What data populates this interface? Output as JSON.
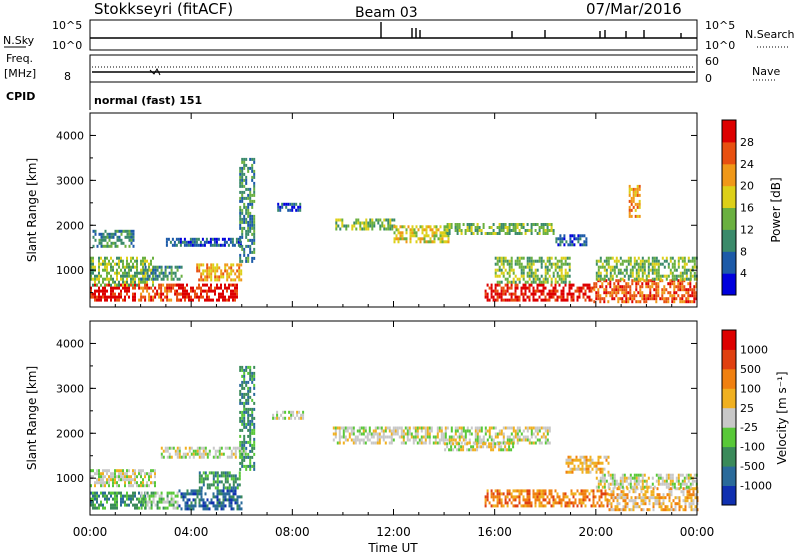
{
  "header": {
    "station": "Stokkseyri (fitACF)",
    "beam": "Beam 03",
    "date": "07/Mar/2016"
  },
  "top_panel": {
    "left_label": "N.Sky",
    "left_ticks": [
      "10^5",
      "10^0"
    ],
    "right_ticks": [
      "10^5",
      "10^0"
    ],
    "right_label": "N.Search"
  },
  "freq_panel": {
    "left_label_line1": "Freq.",
    "left_label_line2": "[MHz]",
    "left_ticks": [
      "8"
    ],
    "right_ticks": [
      "60",
      "0"
    ],
    "right_label": "Nave"
  },
  "cpid": {
    "label": "CPID",
    "mode": "normal (fast) 151"
  },
  "chart_data": {
    "type": "heatmap",
    "x_axis": {
      "label": "Time UT",
      "ticks": [
        "00:00",
        "04:00",
        "08:00",
        "12:00",
        "16:00",
        "20:00",
        "00:00"
      ],
      "range_hours": [
        0,
        24
      ]
    },
    "panels": [
      {
        "name": "power",
        "ylabel": "Slant Range [km]",
        "ylim": [
          180,
          4500
        ],
        "yticks": [
          "1000",
          "2000",
          "3000",
          "4000"
        ],
        "colorbar": {
          "label": "Power [dB]",
          "ticks": [
            "4",
            "8",
            "12",
            "16",
            "20",
            "24",
            "28"
          ],
          "colors": [
            "#0000dd",
            "#1c5aa8",
            "#3a8a6a",
            "#6ab040",
            "#ddd018",
            "#f09818",
            "#e85010",
            "#dd0000"
          ]
        },
        "regions": [
          {
            "t": [
              0.0,
              1.8
            ],
            "r": [
              300,
              700
            ],
            "level": 7
          },
          {
            "t": [
              0.0,
              2.5
            ],
            "r": [
              650,
              1300
            ],
            "level": 3
          },
          {
            "t": [
              0.1,
              1.7
            ],
            "r": [
              1500,
              1900
            ],
            "level": 2
          },
          {
            "t": [
              1.9,
              3.6
            ],
            "r": [
              320,
              700
            ],
            "level": 6
          },
          {
            "t": [
              3.4,
              5.8
            ],
            "r": [
              330,
              700
            ],
            "level": 7
          },
          {
            "t": [
              4.2,
              6.0
            ],
            "r": [
              800,
              1150
            ],
            "level": 5
          },
          {
            "t": [
              2.0,
              3.6
            ],
            "r": [
              800,
              1100
            ],
            "level": 2
          },
          {
            "t": [
              3.0,
              6.0
            ],
            "r": [
              1520,
              1720
            ],
            "level": 1
          },
          {
            "t": [
              5.9,
              6.5
            ],
            "r": [
              1200,
              3500
            ],
            "level": 2
          },
          {
            "t": [
              7.4,
              8.3
            ],
            "r": [
              2300,
              2500
            ],
            "level": 1
          },
          {
            "t": [
              9.7,
              12.0
            ],
            "r": [
              1900,
              2150
            ],
            "level": 3
          },
          {
            "t": [
              12.0,
              14.2
            ],
            "r": [
              1650,
              2000
            ],
            "level": 4
          },
          {
            "t": [
              14.1,
              18.3
            ],
            "r": [
              1800,
              2050
            ],
            "level": 3
          },
          {
            "t": [
              18.4,
              19.6
            ],
            "r": [
              1550,
              1800
            ],
            "level": 1
          },
          {
            "t": [
              15.6,
              19.9
            ],
            "r": [
              300,
              700
            ],
            "level": 7
          },
          {
            "t": [
              16.0,
              19.0
            ],
            "r": [
              700,
              1300
            ],
            "level": 3
          },
          {
            "t": [
              19.9,
              24.0
            ],
            "r": [
              300,
              800
            ],
            "level": 6
          },
          {
            "t": [
              20.0,
              24.0
            ],
            "r": [
              800,
              1300
            ],
            "level": 3
          },
          {
            "t": [
              21.3,
              21.7
            ],
            "r": [
              2200,
              2900
            ],
            "level": 5
          }
        ]
      },
      {
        "name": "velocity",
        "ylabel": "Slant Range [km]",
        "ylim": [
          180,
          4500
        ],
        "yticks": [
          "1000",
          "2000",
          "3000",
          "4000"
        ],
        "colorbar": {
          "label": "Velocity [m s⁻¹]",
          "ticks": [
            "1000",
            "500",
            "100",
            "25",
            "-25",
            "-100",
            "-500",
            "-1000"
          ],
          "colors": [
            "#1030b0",
            "#2a6a9a",
            "#3a8a5a",
            "#58c838",
            "#c8c8c8",
            "#f0b020",
            "#f08010",
            "#e04010",
            "#dd0000"
          ]
        },
        "regions": [
          {
            "t": [
              0.0,
              2.2
            ],
            "r": [
              300,
              700
            ],
            "level": 2
          },
          {
            "t": [
              0.0,
              2.6
            ],
            "r": [
              800,
              1200
            ],
            "level": 4
          },
          {
            "t": [
              2.0,
              3.5
            ],
            "r": [
              350,
              700
            ],
            "level": 3
          },
          {
            "t": [
              3.5,
              6.0
            ],
            "r": [
              300,
              750
            ],
            "level": 1
          },
          {
            "t": [
              4.3,
              5.9
            ],
            "r": [
              800,
              1150
            ],
            "level": 2
          },
          {
            "t": [
              2.8,
              6.2
            ],
            "r": [
              1450,
              1700
            ],
            "level": 4
          },
          {
            "t": [
              5.9,
              6.5
            ],
            "r": [
              1200,
              3500
            ],
            "level": 2
          },
          {
            "t": [
              7.2,
              8.4
            ],
            "r": [
              2300,
              2500
            ],
            "level": 4
          },
          {
            "t": [
              9.6,
              18.2
            ],
            "r": [
              1800,
              2150
            ],
            "level": 4
          },
          {
            "t": [
              14.0,
              16.8
            ],
            "r": [
              1600,
              1800
            ],
            "level": 4
          },
          {
            "t": [
              15.6,
              20.5
            ],
            "r": [
              350,
              750
            ],
            "level": 6
          },
          {
            "t": [
              20.5,
              24.0
            ],
            "r": [
              300,
              800
            ],
            "level": 5
          },
          {
            "t": [
              20.0,
              24.0
            ],
            "r": [
              800,
              1100
            ],
            "level": 4
          },
          {
            "t": [
              18.8,
              20.5
            ],
            "r": [
              1100,
              1500
            ],
            "level": 5
          }
        ]
      }
    ]
  }
}
